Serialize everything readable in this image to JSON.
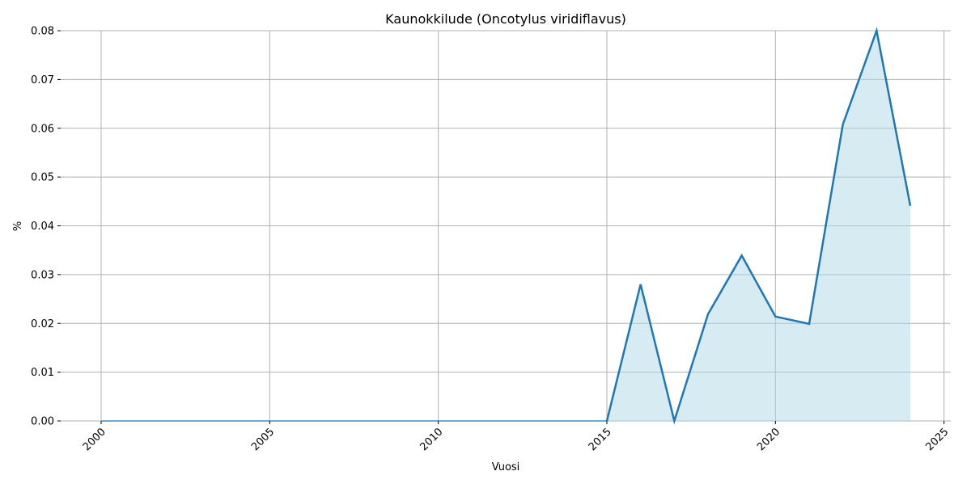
{
  "chart_data": {
    "type": "area",
    "title": "Kaunokkilude (Oncotylus viridiflavus)",
    "xlabel": "Vuosi",
    "ylabel": "%",
    "xlim": [
      1998.8,
      2025.2
    ],
    "ylim": [
      0,
      0.08
    ],
    "x_ticks": [
      2000,
      2005,
      2010,
      2015,
      2020,
      2025
    ],
    "y_ticks": [
      "0.00",
      "0.01",
      "0.02",
      "0.03",
      "0.04",
      "0.05",
      "0.06",
      "0.07",
      "0.08"
    ],
    "grid": true,
    "colors": {
      "line": "#1f77b4",
      "fill": "#add8e6"
    },
    "baseline_series": {
      "x": [
        2000,
        2015
      ],
      "y": [
        0,
        0
      ]
    },
    "series": [
      {
        "x": [
          2015,
          2016,
          2017,
          2018,
          2019,
          2020,
          2021,
          2022,
          2023,
          2024
        ],
        "y": [
          0,
          0.028,
          0,
          0.0219,
          0.0339,
          0.0214,
          0.0199,
          0.0608,
          0.08,
          0.0441
        ]
      }
    ]
  }
}
